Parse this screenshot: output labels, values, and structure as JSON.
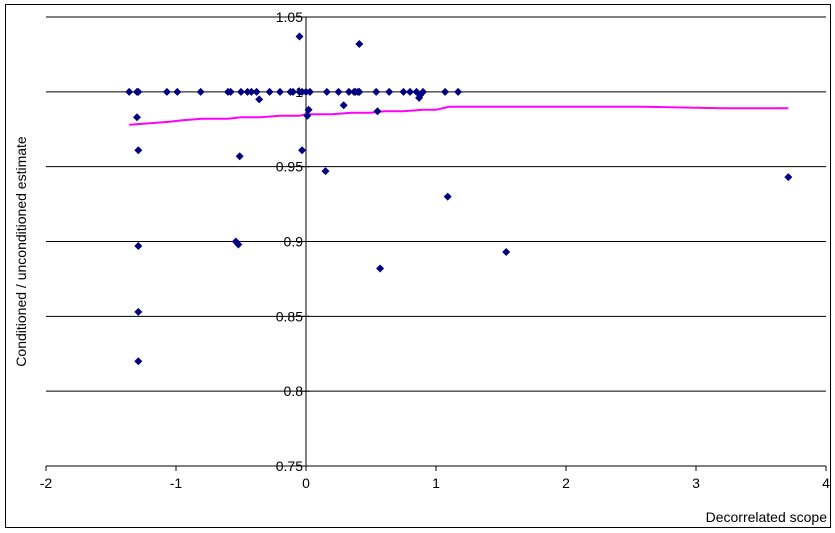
{
  "chart_data": {
    "type": "scatter",
    "xlabel": "Decorrelated scope",
    "ylabel": "Conditioned / unconditioned estimate",
    "xlim": [
      -2,
      4
    ],
    "ylim": [
      0.75,
      1.05
    ],
    "x_ticks": [
      "-2",
      "-1",
      "0",
      "1",
      "2",
      "3",
      "4"
    ],
    "y_ticks": [
      "0.75",
      "0.8",
      "0.85",
      "0.9",
      "0.95",
      "1",
      "1.05"
    ],
    "grid": "horizontal",
    "colors": {
      "points": "#000080",
      "trend": "#ff00ff"
    },
    "series": [
      {
        "kind": "points",
        "points": [
          [
            -1.36,
            1.0
          ],
          [
            -1.3,
            1.0
          ],
          [
            -1.29,
            1.0
          ],
          [
            -1.3,
            0.983
          ],
          [
            -1.29,
            0.961
          ],
          [
            -1.29,
            0.897
          ],
          [
            -1.29,
            0.853
          ],
          [
            -1.29,
            0.82
          ],
          [
            -1.07,
            1.0
          ],
          [
            -0.99,
            1.0
          ],
          [
            -0.81,
            1.0
          ],
          [
            -0.6,
            1.0
          ],
          [
            -0.58,
            1.0
          ],
          [
            -0.5,
            1.0
          ],
          [
            -0.45,
            1.0
          ],
          [
            -0.42,
            1.0
          ],
          [
            -0.38,
            1.0
          ],
          [
            -0.36,
            0.995
          ],
          [
            -0.28,
            1.0
          ],
          [
            -0.2,
            1.0
          ],
          [
            -0.12,
            1.0
          ],
          [
            -0.1,
            1.0
          ],
          [
            -0.05,
            1.0
          ],
          [
            -0.03,
            1.0
          ],
          [
            0.0,
            1.0
          ],
          [
            0.03,
            1.0
          ],
          [
            -0.54,
            0.9
          ],
          [
            -0.52,
            0.898
          ],
          [
            -0.51,
            0.957
          ],
          [
            -0.05,
            1.037
          ],
          [
            -0.03,
            0.961
          ],
          [
            0.01,
            0.984
          ],
          [
            0.02,
            0.988
          ],
          [
            0.15,
            0.947
          ],
          [
            0.16,
            1.0
          ],
          [
            0.25,
            1.0
          ],
          [
            0.29,
            0.991
          ],
          [
            0.33,
            1.0
          ],
          [
            0.37,
            1.0
          ],
          [
            0.38,
            1.0
          ],
          [
            0.4,
            1.0
          ],
          [
            0.41,
            1.0
          ],
          [
            0.41,
            1.032
          ],
          [
            0.54,
            1.0
          ],
          [
            0.55,
            0.987
          ],
          [
            0.57,
            0.882
          ],
          [
            0.64,
            1.0
          ],
          [
            0.75,
            1.0
          ],
          [
            0.8,
            1.0
          ],
          [
            0.85,
            1.0
          ],
          [
            0.87,
            0.996
          ],
          [
            0.88,
            0.998
          ],
          [
            0.9,
            1.0
          ],
          [
            1.07,
            1.0
          ],
          [
            1.09,
            0.93
          ],
          [
            1.17,
            1.0
          ],
          [
            1.54,
            0.893
          ],
          [
            3.71,
            0.943
          ]
        ]
      },
      {
        "kind": "trend",
        "points": [
          [
            -1.36,
            0.978
          ],
          [
            -1.2,
            0.979
          ],
          [
            -1.05,
            0.98
          ],
          [
            -0.95,
            0.981
          ],
          [
            -0.8,
            0.982
          ],
          [
            -0.6,
            0.982
          ],
          [
            -0.5,
            0.983
          ],
          [
            -0.35,
            0.983
          ],
          [
            -0.2,
            0.984
          ],
          [
            -0.05,
            0.984
          ],
          [
            0.0,
            0.985
          ],
          [
            0.2,
            0.985
          ],
          [
            0.35,
            0.986
          ],
          [
            0.5,
            0.986
          ],
          [
            0.6,
            0.987
          ],
          [
            0.75,
            0.987
          ],
          [
            0.9,
            0.988
          ],
          [
            1.0,
            0.988
          ],
          [
            1.1,
            0.99
          ],
          [
            1.3,
            0.99
          ],
          [
            1.6,
            0.99
          ],
          [
            2.0,
            0.99
          ],
          [
            2.6,
            0.99
          ],
          [
            3.2,
            0.989
          ],
          [
            3.71,
            0.989
          ]
        ]
      }
    ]
  }
}
